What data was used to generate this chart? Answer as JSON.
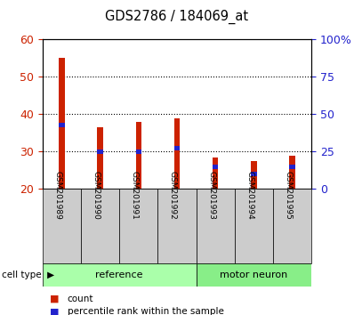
{
  "title": "GDS2786 / 184069_at",
  "samples": [
    "GSM201989",
    "GSM201990",
    "GSM201991",
    "GSM201992",
    "GSM201993",
    "GSM201994",
    "GSM201995"
  ],
  "count_values": [
    55.0,
    36.5,
    38.0,
    39.0,
    28.5,
    27.5,
    29.0
  ],
  "percentile_values": [
    37.0,
    30.0,
    30.0,
    31.0,
    26.0,
    24.0,
    26.0
  ],
  "ymin": 20,
  "ymax": 60,
  "yticks": [
    20,
    30,
    40,
    50,
    60
  ],
  "right_tick_positions": [
    20,
    30,
    40,
    50,
    60
  ],
  "right_yticklabels": [
    "0",
    "25",
    "50",
    "75",
    "100%"
  ],
  "bar_color": "#cc2200",
  "percentile_color": "#2222cc",
  "ref_color": "#aaffaa",
  "mn_color": "#88ee88",
  "label_area_color": "#cccccc",
  "bar_width": 0.15,
  "left_axis_color": "#cc2200",
  "right_axis_color": "#2222cc",
  "background_color": "#ffffff",
  "legend_count": "count",
  "legend_percentile": "percentile rank within the sample",
  "cell_type_label": "cell type",
  "ref_samples": [
    0,
    1,
    2,
    3
  ],
  "mn_samples": [
    4,
    5,
    6
  ],
  "grid_lines": [
    30,
    40,
    50
  ]
}
